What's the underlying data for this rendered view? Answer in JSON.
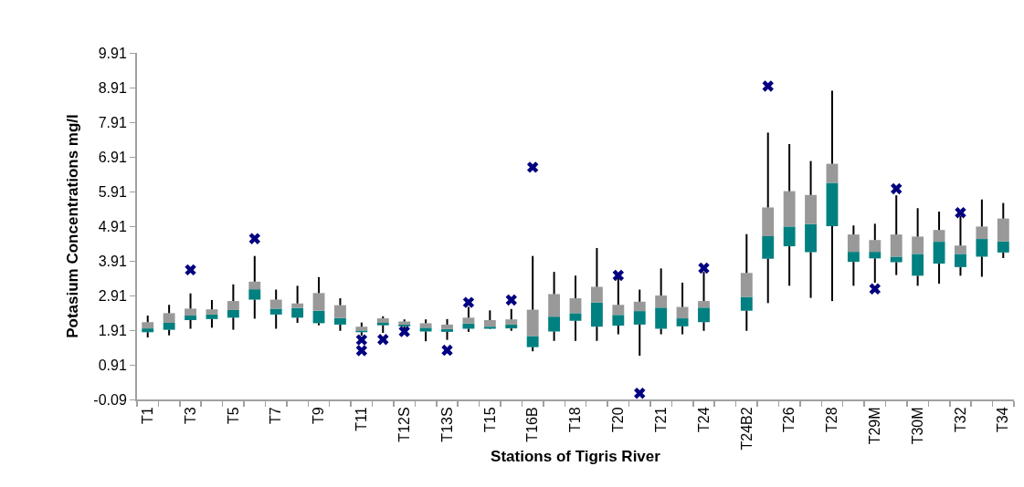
{
  "chart_data": {
    "type": "box",
    "xlabel": "Stations of Tigris River",
    "ylabel": "Potasium Concentrations mg/l",
    "categories": [
      "T1",
      null,
      "T3",
      null,
      "T5",
      null,
      "T7",
      null,
      "T9",
      null,
      "T11",
      null,
      "T12S",
      null,
      "T13S",
      null,
      "T15",
      null,
      "T16B",
      null,
      "T18",
      null,
      "T20",
      null,
      "T21",
      null,
      "T24",
      null,
      "T24B2",
      null,
      "T26",
      null,
      "T28",
      null,
      "T29M",
      null,
      "T30M",
      null,
      "T32",
      null,
      "T34"
    ],
    "ylim": [
      -0.09,
      9.91
    ],
    "yticks": [
      -0.09,
      0.91,
      1.91,
      2.91,
      3.91,
      4.91,
      5.91,
      6.91,
      7.91,
      8.91,
      9.91
    ],
    "grid": false,
    "marker": "cross",
    "series": [
      {
        "color": "#008080",
        "boxes": [
          {
            "low": 1.7,
            "q1": 1.85,
            "median": 1.96,
            "q3": 2.14,
            "high": 2.33
          },
          {
            "low": 1.76,
            "q1": 1.92,
            "median": 2.12,
            "q3": 2.4,
            "high": 2.64
          },
          {
            "low": 1.95,
            "q1": 2.2,
            "median": 2.33,
            "q3": 2.53,
            "high": 2.97,
            "outliers": [
              3.65
            ]
          },
          {
            "low": 1.98,
            "q1": 2.23,
            "median": 2.36,
            "q3": 2.51,
            "high": 2.78
          },
          {
            "low": 1.92,
            "q1": 2.27,
            "median": 2.49,
            "q3": 2.75,
            "high": 3.23
          },
          {
            "low": 2.24,
            "q1": 2.79,
            "median": 3.09,
            "q3": 3.31,
            "high": 4.05,
            "outliers": [
              4.55
            ]
          },
          {
            "low": 1.95,
            "q1": 2.36,
            "median": 2.53,
            "q3": 2.79,
            "high": 3.08
          },
          {
            "low": 2.12,
            "q1": 2.27,
            "median": 2.55,
            "q3": 2.68,
            "high": 3.19
          },
          {
            "low": 2.05,
            "q1": 2.11,
            "median": 2.47,
            "q3": 2.98,
            "high": 3.44
          },
          {
            "low": 1.89,
            "q1": 2.07,
            "median": 2.26,
            "q3": 2.63,
            "high": 2.83
          },
          {
            "low": 1.75,
            "q1": 1.85,
            "median": 1.9,
            "q3": 2.01,
            "high": 2.13,
            "outliers": [
              1.63,
              1.32
            ]
          },
          {
            "low": 1.83,
            "q1": 2.05,
            "median": 2.12,
            "q3": 2.25,
            "high": 2.31,
            "outliers": [
              1.64
            ]
          },
          {
            "low": 1.93,
            "q1": 2.02,
            "median": 2.07,
            "q3": 2.16,
            "high": 2.22,
            "outliers": [
              1.87
            ]
          },
          {
            "low": 1.59,
            "q1": 1.87,
            "median": 1.98,
            "q3": 2.11,
            "high": 2.22
          },
          {
            "low": 1.63,
            "q1": 1.86,
            "median": 1.94,
            "q3": 2.07,
            "high": 2.23,
            "outliers": [
              1.33
            ]
          },
          {
            "low": 1.86,
            "q1": 1.95,
            "median": 2.1,
            "q3": 2.27,
            "high": 2.58,
            "outliers": [
              2.71
            ]
          },
          {
            "low": 1.94,
            "q1": 1.95,
            "median": 2.01,
            "q3": 2.2,
            "high": 2.48
          },
          {
            "low": 1.89,
            "q1": 1.96,
            "median": 2.07,
            "q3": 2.22,
            "high": 2.52,
            "outliers": [
              2.78
            ]
          },
          {
            "low": 1.3,
            "q1": 1.42,
            "median": 1.74,
            "q3": 2.5,
            "high": 4.05,
            "outliers": [
              6.61
            ]
          },
          {
            "low": 1.6,
            "q1": 1.87,
            "median": 2.3,
            "q3": 2.95,
            "high": 3.59
          },
          {
            "low": 1.6,
            "q1": 2.18,
            "median": 2.4,
            "q3": 2.83,
            "high": 3.48
          },
          {
            "low": 1.6,
            "q1": 2.01,
            "median": 2.71,
            "q3": 3.16,
            "high": 4.28
          },
          {
            "low": 1.79,
            "q1": 2.04,
            "median": 2.35,
            "q3": 2.64,
            "high": 3.45,
            "outliers": [
              3.49
            ]
          },
          {
            "low": 1.17,
            "q1": 2.07,
            "median": 2.46,
            "q3": 2.73,
            "high": 3.08,
            "outliers": [
              0.09
            ]
          },
          {
            "low": 1.79,
            "q1": 1.95,
            "median": 2.56,
            "q3": 2.91,
            "high": 3.69
          },
          {
            "low": 1.79,
            "q1": 2.02,
            "median": 2.25,
            "q3": 2.58,
            "high": 3.28
          },
          {
            "low": 1.89,
            "q1": 2.14,
            "median": 2.56,
            "q3": 2.75,
            "high": 3.59,
            "outliers": [
              3.7
            ]
          },
          null,
          {
            "low": 1.89,
            "q1": 2.47,
            "median": 2.87,
            "q3": 3.56,
            "high": 4.68
          },
          {
            "low": 2.69,
            "q1": 3.97,
            "median": 4.62,
            "q3": 5.45,
            "high": 7.61,
            "outliers": [
              8.95
            ]
          },
          {
            "low": 3.19,
            "q1": 4.33,
            "median": 4.9,
            "q3": 5.92,
            "high": 7.28
          },
          {
            "low": 2.84,
            "q1": 4.16,
            "median": 4.97,
            "q3": 5.81,
            "high": 6.79
          },
          {
            "low": 2.75,
            "q1": 4.91,
            "median": 6.16,
            "q3": 6.71,
            "high": 8.82
          },
          {
            "low": 3.19,
            "q1": 3.88,
            "median": 4.17,
            "q3": 4.67,
            "high": 4.93
          },
          {
            "low": 3.28,
            "q1": 3.98,
            "median": 4.17,
            "q3": 4.51,
            "high": 4.98,
            "outliers": [
              3.1
            ]
          },
          {
            "low": 3.5,
            "q1": 3.87,
            "median": 4.03,
            "q3": 4.67,
            "high": 5.8,
            "outliers": [
              5.99
            ]
          },
          {
            "low": 3.19,
            "q1": 3.48,
            "median": 4.11,
            "q3": 4.61,
            "high": 5.43
          },
          {
            "low": 3.25,
            "q1": 3.83,
            "median": 4.46,
            "q3": 4.8,
            "high": 5.33
          },
          {
            "low": 3.48,
            "q1": 3.73,
            "median": 4.11,
            "q3": 4.35,
            "high": 5.21,
            "outliers": [
              5.3
            ]
          },
          {
            "low": 3.45,
            "q1": 4.03,
            "median": 4.54,
            "q3": 4.9,
            "high": 5.68
          },
          {
            "low": 3.99,
            "q1": 4.15,
            "median": 4.47,
            "q3": 5.13,
            "high": 5.58
          }
        ]
      }
    ]
  }
}
